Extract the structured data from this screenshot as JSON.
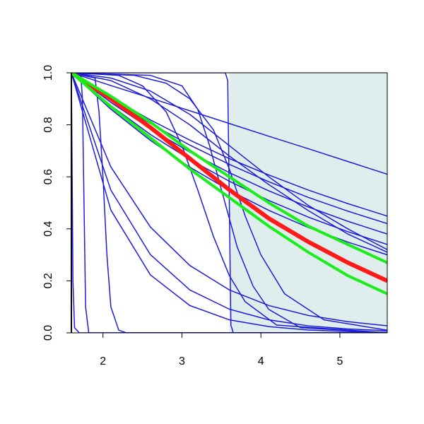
{
  "chart_data": {
    "type": "line",
    "xlim": [
      1.6,
      5.6
    ],
    "ylim": [
      0,
      1
    ],
    "xticks": [
      2,
      3,
      4,
      5
    ],
    "yticks": [
      {
        "value": 0,
        "label": "0.0"
      },
      {
        "value": 0.2,
        "label": "0.2"
      },
      {
        "value": 0.4,
        "label": "0.4"
      },
      {
        "value": 0.6,
        "label": "0.6"
      },
      {
        "value": 0.8,
        "label": "0.8"
      },
      {
        "value": 1,
        "label": "1.0"
      }
    ],
    "shaded_region": {
      "x": [
        3.6,
        5.6
      ],
      "color": "#e0eded"
    },
    "x": [
      1.6,
      2.1,
      2.6,
      3.1,
      3.6,
      4.1,
      4.6,
      5.1,
      5.6
    ],
    "series": [
      {
        "color": "#1c1cdc",
        "width": 1.5,
        "values": [
          1,
          0.951,
          0.903,
          0.854,
          0.805,
          0.756,
          0.708,
          0.659,
          0.61
        ]
      },
      {
        "color": "#1c1cdc",
        "width": 1.5,
        "values": [
          1,
          0.905,
          0.819,
          0.741,
          0.67,
          0.607,
          0.549,
          0.497,
          0.449
        ]
      },
      {
        "color": "#1c1cdc",
        "width": 1.5,
        "values": [
          1,
          0.897,
          0.805,
          0.722,
          0.648,
          0.581,
          0.521,
          0.468,
          0.42
        ]
      },
      {
        "color": "#1c1cdc",
        "width": 1.5,
        "values": [
          1,
          0.886,
          0.785,
          0.695,
          0.616,
          0.546,
          0.484,
          0.429,
          0.38
        ]
      },
      {
        "color": "#1c1cdc",
        "width": 1.5,
        "values": [
          1,
          0.874,
          0.763,
          0.667,
          0.583,
          0.509,
          0.445,
          0.389,
          0.34
        ]
      },
      {
        "color": "#1c1cdc",
        "width": 1.5,
        "values": [
          1,
          0.86,
          0.74,
          0.637,
          0.548,
          0.471,
          0.405,
          0.349,
          0.3
        ]
      },
      {
        "color": "#1c1cdc",
        "width": 1.5,
        "values": [
          1,
          0.97,
          0.9,
          0.8,
          0.68,
          0.57,
          0.47,
          0.38,
          0.31
        ]
      },
      {
        "color": "#1c1cdc",
        "width": 1.5,
        "values": [
          1,
          0.98,
          0.93,
          0.84,
          0.72,
          0.6,
          0.49,
          0.4,
          0.32
        ]
      },
      {
        "color": "#1c1cdc",
        "width": 1.5,
        "values": [
          1,
          0.472,
          0.223,
          0.105,
          0.05,
          0.024,
          0.011,
          0.005,
          0.002
        ]
      },
      {
        "color": "#1c1cdc",
        "width": 1.5,
        "values": [
          1,
          0.549,
          0.301,
          0.165,
          0.091,
          0.05,
          0.027,
          0.015,
          0.008
        ]
      },
      {
        "color": "#1c1cdc",
        "width": 1.5,
        "values": [
          1,
          0.638,
          0.407,
          0.259,
          0.165,
          0.105,
          0.067,
          0.043,
          0.027
        ]
      },
      {
        "color": "#1c1cdc",
        "width": 1.5,
        "x": [
          1.6,
          1.61,
          1.62,
          1.64,
          1.7,
          5.6
        ],
        "values": [
          1,
          0.6,
          0.2,
          0.02,
          0,
          0
        ]
      },
      {
        "color": "#1c1cdc",
        "width": 1.5,
        "x": [
          1.6,
          1.72,
          1.74,
          1.76,
          1.78,
          1.82,
          5.6
        ],
        "values": [
          1,
          0.99,
          0.9,
          0.5,
          0.1,
          0,
          0
        ]
      },
      {
        "color": "#1c1cdc",
        "width": 1.5,
        "x": [
          1.6,
          1.9,
          1.95,
          2.0,
          2.05,
          2.1,
          2.2,
          2.3,
          5.6
        ],
        "values": [
          1,
          0.98,
          0.85,
          0.6,
          0.3,
          0.1,
          0.01,
          0,
          0
        ]
      },
      {
        "color": "#1c1cdc",
        "width": 1.5,
        "x": [
          1.6,
          3.55,
          3.58,
          3.6,
          3.62,
          3.65,
          5.6
        ],
        "values": [
          1,
          1,
          0.97,
          0.5,
          0.03,
          0,
          0
        ]
      },
      {
        "color": "#1c1cdc",
        "width": 1.5,
        "x": [
          1.6,
          2.2,
          2.5,
          2.8,
          3.0,
          3.2,
          3.4,
          3.6,
          3.8,
          4.2,
          5.6
        ],
        "values": [
          1,
          0.99,
          0.95,
          0.85,
          0.72,
          0.55,
          0.37,
          0.22,
          0.12,
          0.03,
          0
        ]
      },
      {
        "color": "#1c1cdc",
        "width": 1.5,
        "x": [
          1.6,
          2.6,
          3.0,
          3.2,
          3.35,
          3.5,
          3.7,
          3.9,
          4.1,
          4.5,
          5.6
        ],
        "values": [
          1,
          0.99,
          0.95,
          0.86,
          0.72,
          0.55,
          0.33,
          0.18,
          0.09,
          0.02,
          0
        ]
      },
      {
        "color": "#1c1cdc",
        "width": 1.5,
        "x": [
          1.6,
          2.4,
          2.8,
          3.1,
          3.4,
          3.6,
          3.8,
          4.0,
          4.3,
          4.8,
          5.6
        ],
        "values": [
          1,
          0.99,
          0.96,
          0.9,
          0.78,
          0.63,
          0.45,
          0.3,
          0.15,
          0.05,
          0.01
        ]
      },
      {
        "color": "#ff1a1a",
        "width": 6,
        "values": [
          1,
          0.9,
          0.79,
          0.67,
          0.55,
          0.44,
          0.35,
          0.27,
          0.2
        ]
      },
      {
        "color": "#1aee1a",
        "width": 4,
        "values": [
          1,
          0.91,
          0.81,
          0.7,
          0.6,
          0.5,
          0.41,
          0.34,
          0.27
        ]
      },
      {
        "color": "#1aee1a",
        "width": 4,
        "values": [
          1,
          0.87,
          0.75,
          0.63,
          0.52,
          0.41,
          0.31,
          0.22,
          0.15
        ]
      }
    ]
  }
}
